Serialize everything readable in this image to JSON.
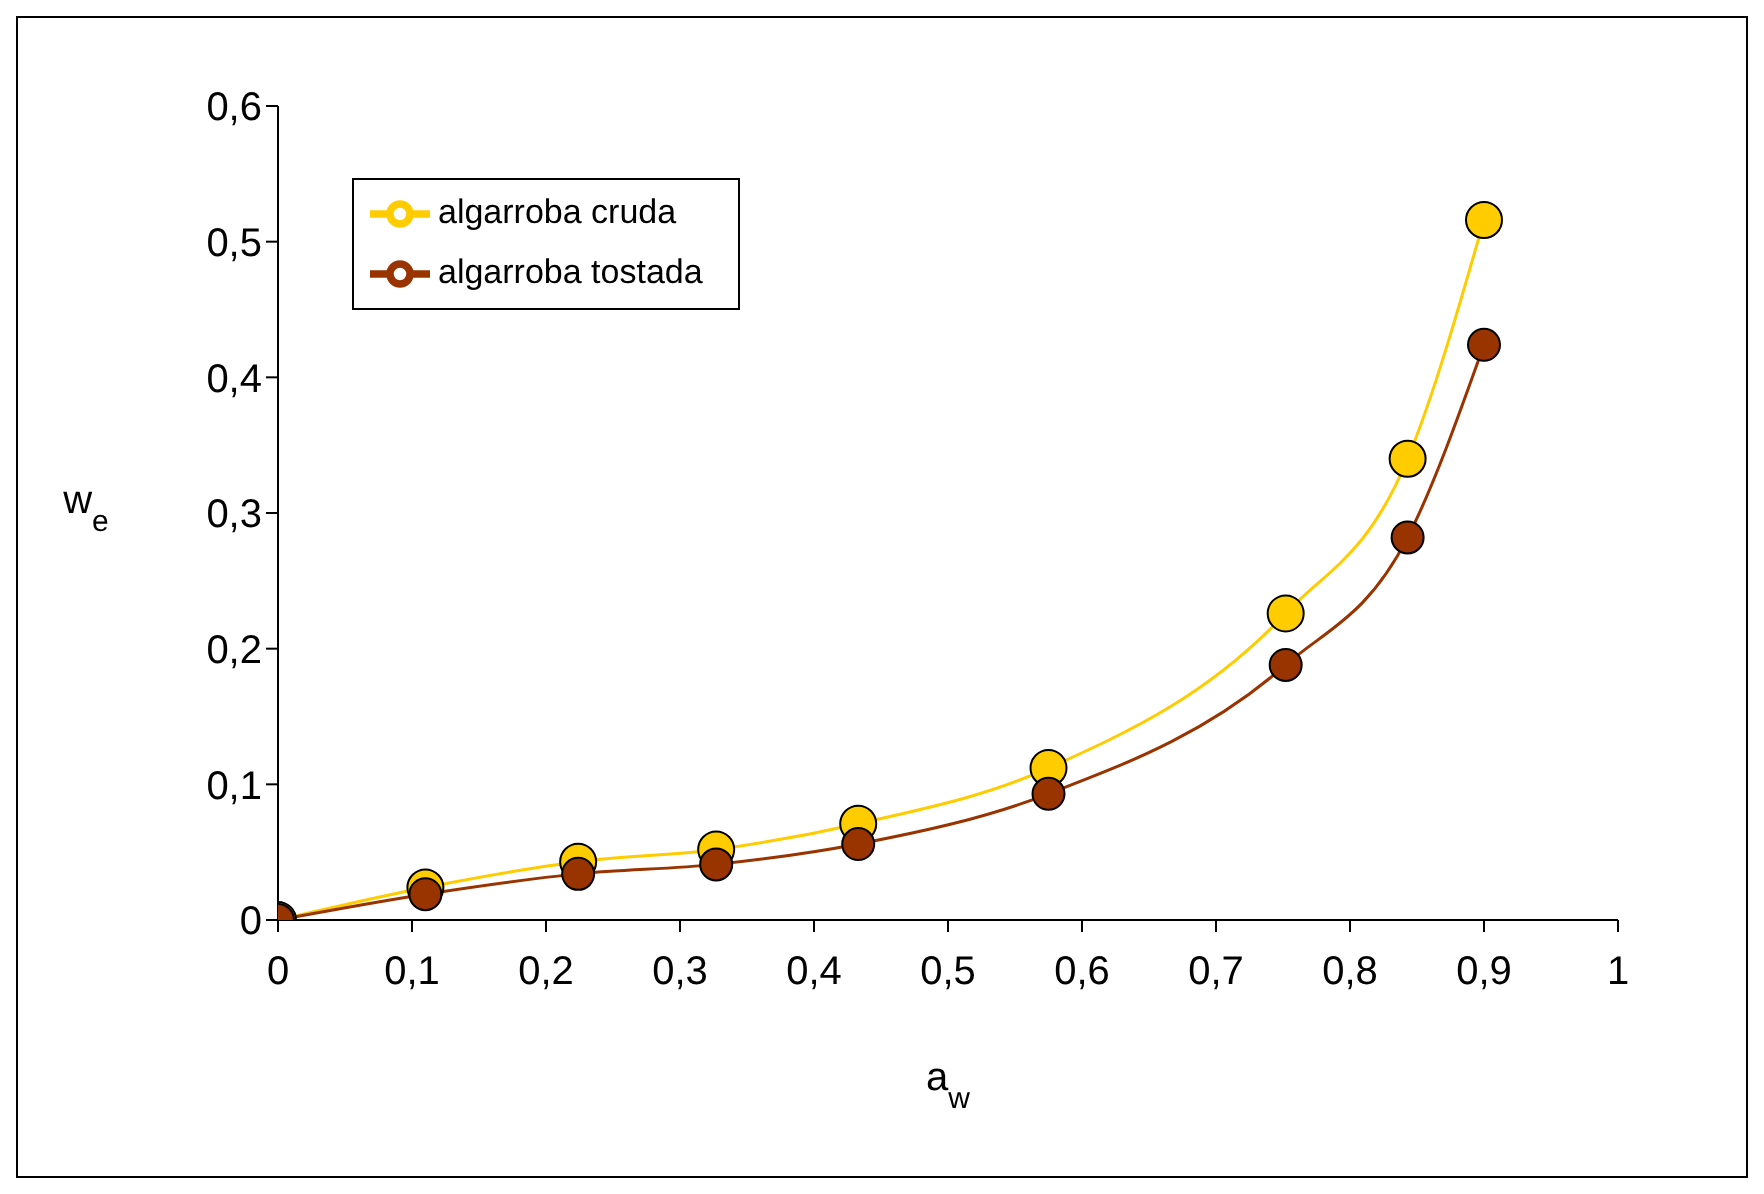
{
  "chart_data": {
    "type": "line",
    "xlabel": "a$_{w}$",
    "ylabel": "w$_{e}$",
    "xlim": [
      0,
      1
    ],
    "ylim": [
      0,
      0.6
    ],
    "xticks": [
      0,
      {
        "value": 0.1,
        "label": "0,1"
      },
      {
        "value": 0.2,
        "label": "0,2"
      },
      {
        "value": 0.3,
        "label": "0,3"
      },
      {
        "value": 0.4,
        "label": "0,4"
      },
      {
        "value": 0.5,
        "label": "0,5"
      },
      {
        "value": 0.6,
        "label": "0,6"
      },
      {
        "value": 0.7,
        "label": "0,7"
      },
      {
        "value": 0.8,
        "label": "0,8"
      },
      {
        "value": 0.9,
        "label": "0,9"
      },
      1
    ],
    "yticks": [
      0,
      {
        "value": 0.1,
        "label": "0,1"
      },
      {
        "value": 0.2,
        "label": "0,2"
      },
      {
        "value": 0.3,
        "label": "0,3"
      },
      {
        "value": 0.4,
        "label": "0,4"
      },
      {
        "value": 0.5,
        "label": "0,5"
      },
      {
        "value": 0.6,
        "label": "0,6"
      }
    ],
    "x": [
      0,
      0.11,
      0.224,
      0.327,
      0.433,
      0.575,
      0.752,
      0.843,
      0.9
    ],
    "series": [
      {
        "name": "algarroba cruda",
        "color": "#ffcc00",
        "values": [
          0,
          0.024,
          0.043,
          0.052,
          0.071,
          0.112,
          0.226,
          0.34,
          0.516
        ]
      },
      {
        "name": "algarroba tostada",
        "color": "#993300",
        "values": [
          0,
          0.019,
          0.034,
          0.041,
          0.056,
          0.093,
          0.188,
          0.282,
          0.424
        ]
      }
    ],
    "marker": "circle",
    "line_style": "solid",
    "grid": false,
    "legend": "top left"
  }
}
